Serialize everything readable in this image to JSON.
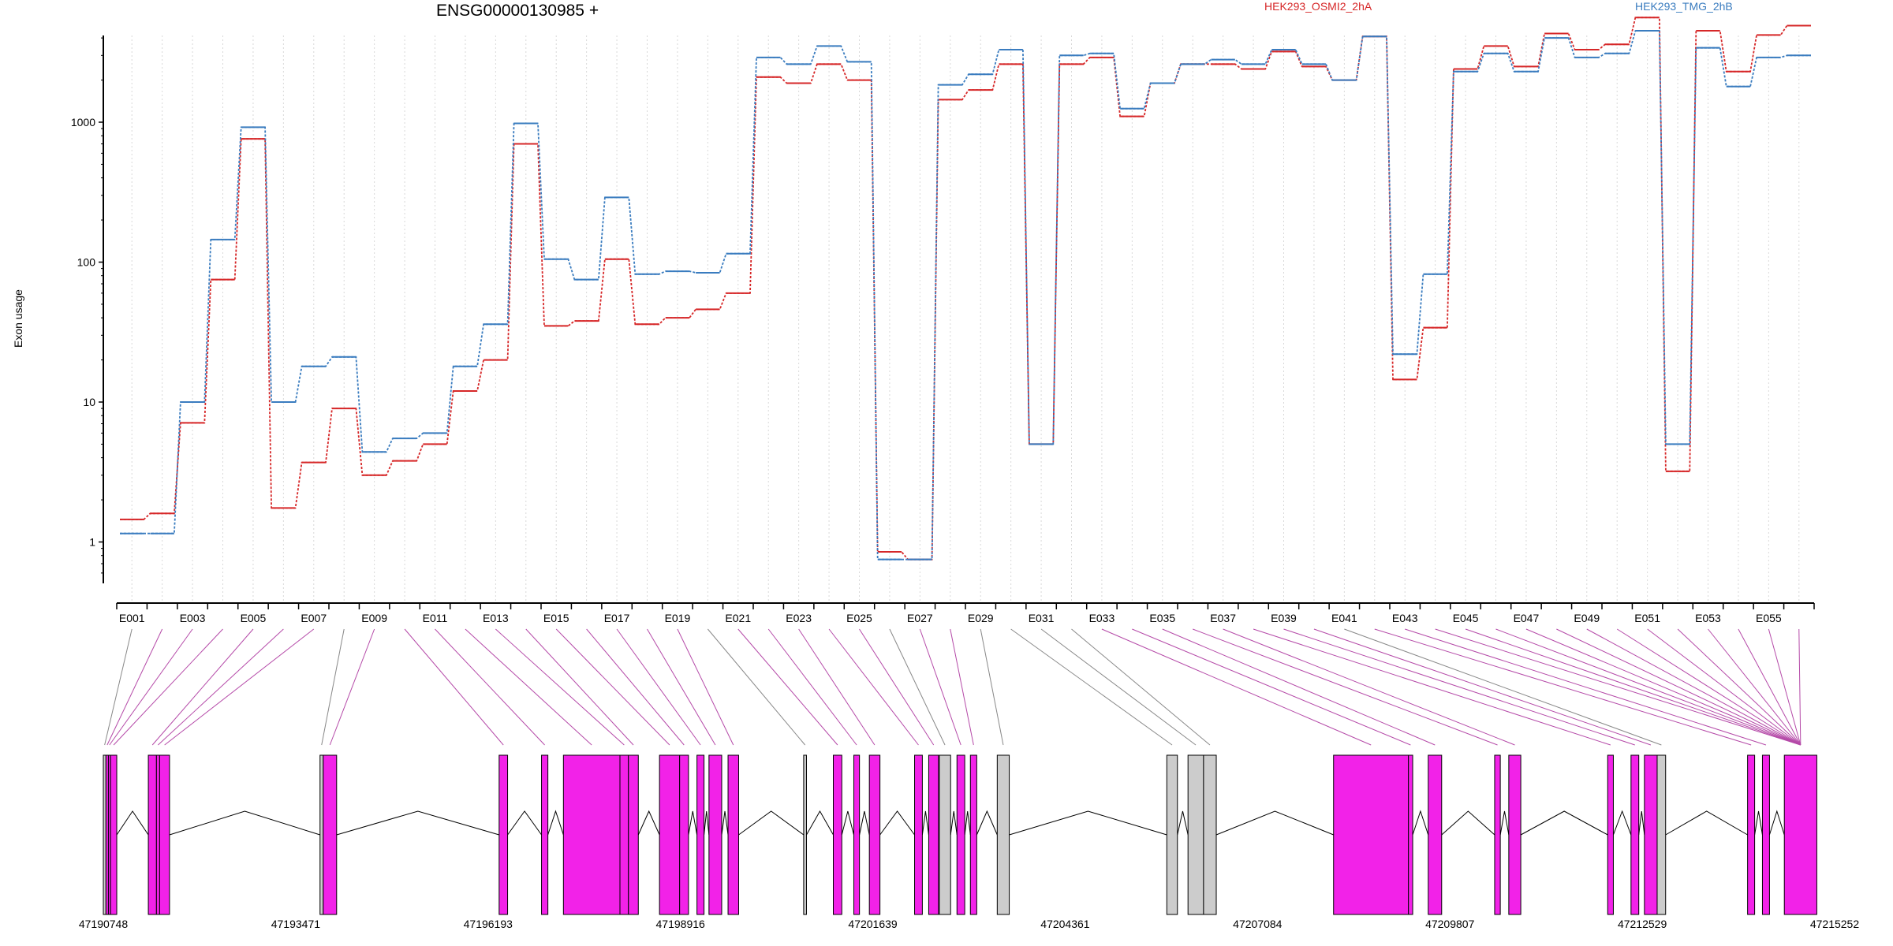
{
  "chart_data": {
    "type": "line",
    "title": "ENSG00000130985 +",
    "ylabel": "Exon usage",
    "yscale": "log",
    "ylim": [
      0.35,
      9000
    ],
    "yticks": [
      1,
      10,
      100,
      1000
    ],
    "ytick_labels": [
      "1",
      "10",
      "100",
      "1000"
    ],
    "exons": [
      "E001",
      "E002",
      "E003",
      "E004",
      "E005",
      "E006",
      "E007",
      "E008",
      "E009",
      "E010",
      "E011",
      "E012",
      "E013",
      "E014",
      "E015",
      "E016",
      "E017",
      "E018",
      "E019",
      "E020",
      "E021",
      "E022",
      "E023",
      "E024",
      "E025",
      "E026",
      "E027",
      "E028",
      "E029",
      "E030",
      "E031",
      "E032",
      "E033",
      "E034",
      "E035",
      "E036",
      "E037",
      "E038",
      "E039",
      "E040",
      "E041",
      "E042",
      "E043",
      "E044",
      "E045",
      "E046",
      "E047",
      "E048",
      "E049",
      "E050",
      "E051",
      "E052",
      "E053",
      "E054",
      "E055",
      "E056"
    ],
    "exon_tick_labels": [
      "E001",
      "E003",
      "E005",
      "E007",
      "E009",
      "E011",
      "E013",
      "E015",
      "E017",
      "E019",
      "E021",
      "E023",
      "E025",
      "E027",
      "E029",
      "E031",
      "E033",
      "E035",
      "E037",
      "E039",
      "E041",
      "E043",
      "E045",
      "E047",
      "E049",
      "E051",
      "E053",
      "E055"
    ],
    "series": [
      {
        "name": "HEK293_OSMI2_2hA",
        "color": "#d62728",
        "values": [
          1.45,
          1.6,
          7.1,
          75,
          760,
          1.75,
          3.7,
          9.0,
          3.0,
          3.8,
          5.0,
          12,
          20,
          700,
          35,
          38,
          105,
          36,
          40,
          46,
          60,
          2100,
          1900,
          2600,
          2000,
          0.85,
          0.75,
          1450,
          1700,
          2600,
          5.0,
          2600,
          2900,
          1100,
          1900,
          2600,
          2600,
          2400,
          3200,
          2500,
          2000,
          4100,
          14.5,
          34,
          2400,
          3500,
          2500,
          4300,
          3300,
          3600,
          5600,
          3.2,
          4500,
          2300,
          4200,
          4900
        ]
      },
      {
        "name": "HEK293_TMG_2hB",
        "color": "#3a7cbf",
        "values": [
          1.15,
          1.15,
          10,
          145,
          920,
          10,
          18,
          21,
          4.4,
          5.5,
          6.0,
          18,
          36,
          980,
          105,
          75,
          290,
          82,
          86,
          84,
          115,
          2900,
          2600,
          3500,
          2700,
          0.75,
          0.75,
          1850,
          2200,
          3300,
          5.0,
          3000,
          3100,
          1250,
          1900,
          2600,
          2800,
          2600,
          3300,
          2600,
          2000,
          4100,
          22,
          82,
          2300,
          3100,
          2300,
          4000,
          2900,
          3100,
          4500,
          5.0,
          3400,
          1800,
          2900,
          3000
        ]
      }
    ],
    "gene_model": {
      "coordinate_labels": [
        "47190748",
        "47193471",
        "47196193",
        "47198916",
        "47201639",
        "47204361",
        "47207084",
        "47209807",
        "47212529",
        "47215252"
      ],
      "start": 47190748,
      "end": 47215252,
      "exons": [
        {
          "s": 47190748,
          "e": 47190785,
          "c": "gray"
        },
        {
          "s": 47190785,
          "e": 47190820,
          "c": "magenta"
        },
        {
          "s": 47190820,
          "e": 47190850,
          "c": "magenta"
        },
        {
          "s": 47190850,
          "e": 47190938,
          "c": "magenta"
        },
        {
          "s": 47191385,
          "e": 47191500,
          "c": "magenta"
        },
        {
          "s": 47191500,
          "e": 47191545,
          "c": "magenta"
        },
        {
          "s": 47191545,
          "e": 47191685,
          "c": "magenta"
        },
        {
          "s": 47193815,
          "e": 47193860,
          "c": "gray"
        },
        {
          "s": 47193860,
          "e": 47194050,
          "c": "magenta"
        },
        {
          "s": 47196350,
          "e": 47196470,
          "c": "magenta"
        },
        {
          "s": 47196950,
          "e": 47197040,
          "c": "magenta"
        },
        {
          "s": 47197260,
          "e": 47198060,
          "c": "magenta"
        },
        {
          "s": 47198060,
          "e": 47198180,
          "c": "magenta"
        },
        {
          "s": 47198180,
          "e": 47198320,
          "c": "magenta"
        },
        {
          "s": 47198620,
          "e": 47198905,
          "c": "magenta"
        },
        {
          "s": 47198905,
          "e": 47199030,
          "c": "magenta"
        },
        {
          "s": 47199150,
          "e": 47199250,
          "c": "magenta"
        },
        {
          "s": 47199320,
          "e": 47199500,
          "c": "magenta"
        },
        {
          "s": 47199590,
          "e": 47199740,
          "c": "magenta"
        },
        {
          "s": 47200660,
          "e": 47200700,
          "c": "gray"
        },
        {
          "s": 47201080,
          "e": 47201200,
          "c": "magenta"
        },
        {
          "s": 47201370,
          "e": 47201450,
          "c": "magenta"
        },
        {
          "s": 47201590,
          "e": 47201740,
          "c": "magenta"
        },
        {
          "s": 47202230,
          "e": 47202340,
          "c": "magenta"
        },
        {
          "s": 47202430,
          "e": 47202570,
          "c": "magenta"
        },
        {
          "s": 47202580,
          "e": 47202740,
          "c": "gray"
        },
        {
          "s": 47202830,
          "e": 47202940,
          "c": "magenta"
        },
        {
          "s": 47203020,
          "e": 47203110,
          "c": "magenta"
        },
        {
          "s": 47203400,
          "e": 47203570,
          "c": "gray"
        },
        {
          "s": 47205800,
          "e": 47205950,
          "c": "gray"
        },
        {
          "s": 47206100,
          "e": 47206320,
          "c": "gray"
        },
        {
          "s": 47206320,
          "e": 47206500,
          "c": "gray"
        },
        {
          "s": 47208160,
          "e": 47209220,
          "c": "magenta"
        },
        {
          "s": 47209220,
          "e": 47209280,
          "c": "magenta"
        },
        {
          "s": 47209500,
          "e": 47209690,
          "c": "magenta"
        },
        {
          "s": 47210440,
          "e": 47210520,
          "c": "magenta"
        },
        {
          "s": 47210640,
          "e": 47210810,
          "c": "magenta"
        },
        {
          "s": 47212040,
          "e": 47212120,
          "c": "magenta"
        },
        {
          "s": 47212370,
          "e": 47212480,
          "c": "magenta"
        },
        {
          "s": 47212560,
          "e": 47212740,
          "c": "magenta"
        },
        {
          "s": 47212740,
          "e": 47212860,
          "c": "gray"
        },
        {
          "s": 47214020,
          "e": 47214120,
          "c": "magenta"
        },
        {
          "s": 47214230,
          "e": 47214330,
          "c": "magenta"
        },
        {
          "s": 47214540,
          "e": 47215000,
          "c": "magenta"
        }
      ],
      "colors": {
        "magenta": "#f222e8",
        "gray": "#cccccc",
        "stroke": "#000000"
      }
    }
  }
}
